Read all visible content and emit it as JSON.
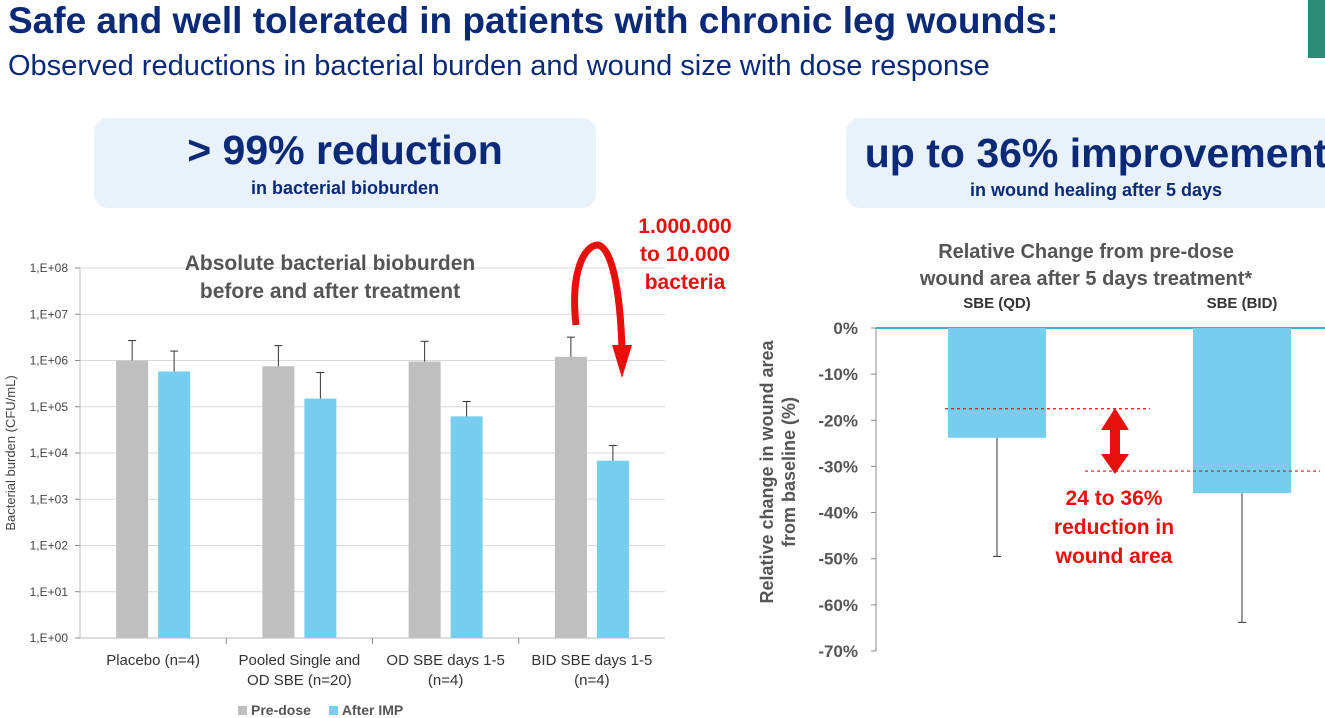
{
  "header": {
    "title": "Safe and well tolerated in patients with chronic leg wounds:",
    "subtitle": "Observed reductions in bacterial burden and wound size with dose response"
  },
  "callouts": {
    "left": {
      "big": "> 99% reduction",
      "small": "in bacterial bioburden"
    },
    "right": {
      "big": "up to 36% improvement",
      "small": "in wound healing after 5 days"
    }
  },
  "annotations": {
    "bacteria_line1": "1.000.000",
    "bacteria_line2": "to 10.000",
    "bacteria_line3": "bacteria",
    "wound_line1": "24 to 36%",
    "wound_line2": "reduction in",
    "wound_line3": "wound area"
  },
  "colors": {
    "pre": "#bfbfbf",
    "after": "#76cdee",
    "navy": "#0a2a78",
    "red": "#e8100d"
  },
  "chart_data": [
    {
      "type": "bar",
      "title_line1": "Absolute bacterial bioburden",
      "title_line2": "before and after treatment",
      "ylabel": "Bacterial burden (CFU/mL)",
      "yscale": "log",
      "ylim": [
        1,
        100000000
      ],
      "yticks": [
        "1,E+00",
        "1,E+01",
        "1,E+02",
        "1,E+03",
        "1,E+04",
        "1,E+05",
        "1,E+06",
        "1,E+07",
        "1,E+08"
      ],
      "categories": [
        [
          "Placebo (n=4)"
        ],
        [
          "Pooled Single and",
          "OD SBE (n=20)"
        ],
        [
          "OD SBE days 1-5",
          "(n=4)"
        ],
        [
          "BID SBE days 1-5",
          "(n=4)"
        ]
      ],
      "series": [
        {
          "name": "Pre-dose",
          "values": [
            1000000,
            750000,
            950000,
            1200000
          ],
          "err_upper": [
            2700000,
            2100000,
            2600000,
            3200000
          ]
        },
        {
          "name": "After IMP",
          "values": [
            580000,
            150000,
            62000,
            6800
          ],
          "err_upper": [
            1600000,
            550000,
            130000,
            14500
          ]
        }
      ],
      "legend_position": "bottom",
      "grid": true
    },
    {
      "type": "bar",
      "title_line1": "Relative Change from pre-dose",
      "title_line2": "wound area after 5 days treatment*",
      "ylabel_line1": "Relative change in wound area",
      "ylabel_line2": "from baseline (%)",
      "ylim": [
        -70,
        0
      ],
      "yticks": [
        "0%",
        "-10%",
        "-20%",
        "-30%",
        "-40%",
        "-50%",
        "-60%",
        "-70%"
      ],
      "categories": [
        "SBE (QD)",
        "SBE (BID)"
      ],
      "values": [
        -23.8,
        -35.8
      ],
      "err_lower": [
        -49.5,
        -63.8
      ],
      "reference_lines": [
        -17.5,
        -31
      ],
      "grid": false
    }
  ]
}
